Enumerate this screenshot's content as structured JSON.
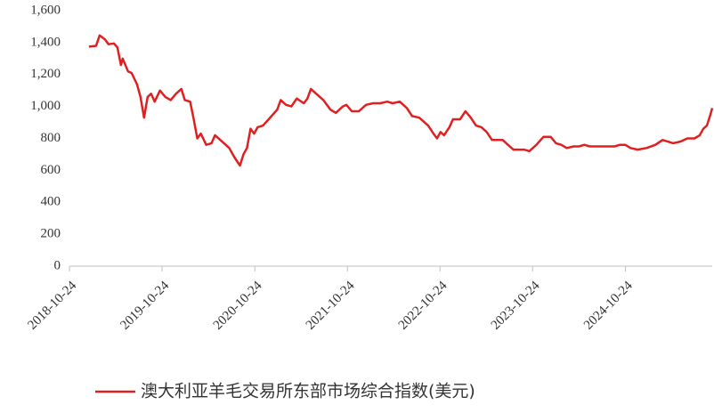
{
  "chart_data": {
    "type": "line",
    "x": [
      "2019-01-09",
      "2019-02-06",
      "2019-02-20",
      "2019-03-13",
      "2019-03-27",
      "2019-04-17",
      "2019-05-01",
      "2019-05-15",
      "2019-05-22",
      "2019-06-12",
      "2019-06-26",
      "2019-07-17",
      "2019-07-31",
      "2019-08-14",
      "2019-08-28",
      "2019-09-11",
      "2019-09-25",
      "2019-10-16",
      "2019-11-06",
      "2019-11-27",
      "2019-12-18",
      "2020-01-08",
      "2020-01-22",
      "2020-02-12",
      "2020-02-26",
      "2020-03-11",
      "2020-03-25",
      "2020-04-15",
      "2020-05-06",
      "2020-05-20",
      "2020-06-17",
      "2020-07-15",
      "2020-08-05",
      "2020-08-26",
      "2020-09-09",
      "2020-09-23",
      "2020-10-07",
      "2020-10-21",
      "2020-11-04",
      "2020-11-25",
      "2020-12-23",
      "2021-01-20",
      "2021-02-03",
      "2021-02-24",
      "2021-03-17",
      "2021-04-07",
      "2021-05-05",
      "2021-05-19",
      "2021-06-02",
      "2021-06-30",
      "2021-07-21",
      "2021-08-18",
      "2021-09-08",
      "2021-10-06",
      "2021-10-20",
      "2021-11-10",
      "2021-12-08",
      "2022-01-05",
      "2022-02-02",
      "2022-03-02",
      "2022-03-30",
      "2022-04-20",
      "2022-05-18",
      "2022-06-15",
      "2022-07-06",
      "2022-08-03",
      "2022-09-07",
      "2022-09-28",
      "2022-10-12",
      "2022-10-26",
      "2022-11-09",
      "2022-11-30",
      "2022-12-14",
      "2023-01-11",
      "2023-02-01",
      "2023-02-22",
      "2023-03-15",
      "2023-04-05",
      "2023-04-26",
      "2023-05-17",
      "2023-06-07",
      "2023-06-28",
      "2023-07-19",
      "2023-08-09",
      "2023-08-30",
      "2023-09-20",
      "2023-10-11",
      "2023-11-08",
      "2023-12-06",
      "2024-01-03",
      "2024-01-24",
      "2024-02-14",
      "2024-03-06",
      "2024-04-03",
      "2024-04-24",
      "2024-05-15",
      "2024-06-05",
      "2024-07-03",
      "2024-08-07",
      "2024-09-11",
      "2024-10-02",
      "2024-10-23",
      "2024-11-13",
      "2024-12-11",
      "2025-01-15",
      "2025-02-19",
      "2025-03-19",
      "2025-04-09",
      "2025-04-30",
      "2025-05-28",
      "2025-06-25",
      "2025-07-23",
      "2025-08-13",
      "2025-08-27",
      "2025-09-10",
      "2025-09-24",
      "2025-10-01"
    ],
    "series": [
      {
        "name": "澳大利亚羊毛交易所东部市场综合指数(美元)",
        "color": "#e02020",
        "values": [
          1375,
          1380,
          1445,
          1420,
          1390,
          1395,
          1370,
          1260,
          1300,
          1220,
          1210,
          1140,
          1060,
          930,
          1060,
          1080,
          1030,
          1100,
          1060,
          1040,
          1080,
          1110,
          1040,
          1030,
          920,
          800,
          830,
          760,
          770,
          820,
          780,
          740,
          680,
          630,
          700,
          740,
          860,
          830,
          870,
          880,
          930,
          980,
          1040,
          1010,
          1000,
          1050,
          1020,
          1050,
          1110,
          1070,
          1040,
          980,
          960,
          1000,
          1010,
          970,
          970,
          1010,
          1020,
          1020,
          1030,
          1020,
          1030,
          990,
          940,
          930,
          880,
          830,
          800,
          840,
          820,
          870,
          920,
          920,
          970,
          930,
          880,
          870,
          840,
          790,
          790,
          790,
          760,
          730,
          730,
          730,
          720,
          760,
          810,
          810,
          770,
          760,
          740,
          750,
          750,
          760,
          750,
          750,
          750,
          750,
          760,
          760,
          740,
          730,
          740,
          760,
          790,
          780,
          770,
          780,
          800,
          800,
          820,
          860,
          880,
          950,
          990
        ]
      }
    ],
    "xlim": [
      "2018-10-24",
      "2025-10-01"
    ],
    "xticks": [
      "2018-10-24",
      "2019-10-24",
      "2020-10-24",
      "2021-10-24",
      "2022-10-24",
      "2023-10-24",
      "2024-10-24"
    ],
    "ylim": [
      0,
      1600
    ],
    "yticks": [
      0,
      200,
      400,
      600,
      800,
      {
        "value": 1000,
        "label": "1,000"
      },
      {
        "value": 1200,
        "label": "1,200"
      },
      {
        "value": 1400,
        "label": "1,400"
      },
      {
        "value": 1600,
        "label": "1,600"
      }
    ],
    "legend": "bottom"
  }
}
